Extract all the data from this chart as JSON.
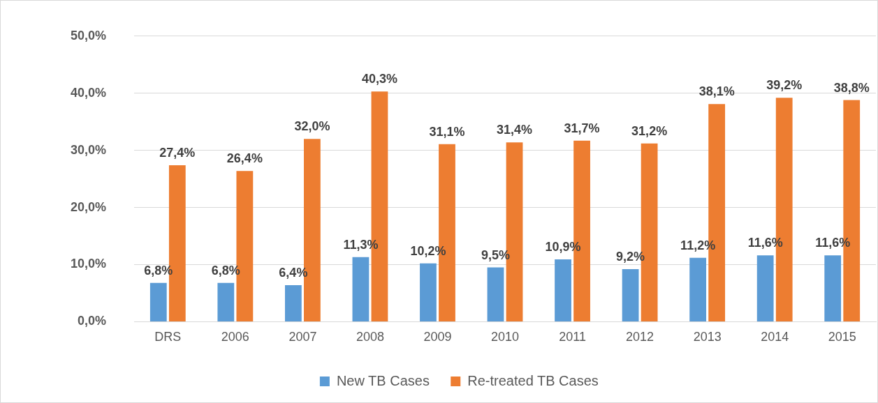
{
  "chart_data": {
    "type": "bar",
    "categories": [
      "DRS",
      "2006",
      "2007",
      "2008",
      "2009",
      "2010",
      "2011",
      "2012",
      "2013",
      "2014",
      "2015"
    ],
    "series": [
      {
        "name": "New TB Cases",
        "color": "#5b9bd5",
        "values": [
          6.8,
          6.8,
          6.4,
          11.3,
          10.2,
          9.5,
          10.9,
          9.2,
          11.2,
          11.6,
          11.6
        ],
        "value_labels": [
          "6,8%",
          "6,8%",
          "6,4%",
          "11,3%",
          "10,2%",
          "9,5%",
          "10,9%",
          "9,2%",
          "11,2%",
          "11,6%",
          "11,6%"
        ]
      },
      {
        "name": "Re-treated TB Cases",
        "color": "#ed7d31",
        "values": [
          27.4,
          26.4,
          32.0,
          40.3,
          31.1,
          31.4,
          31.7,
          31.2,
          38.1,
          39.2,
          38.8
        ],
        "value_labels": [
          "27,4%",
          "26,4%",
          "32,0%",
          "40,3%",
          "31,1%",
          "31,4%",
          "31,7%",
          "31,2%",
          "38,1%",
          "39,2%",
          "38,8%"
        ]
      }
    ],
    "ylim": [
      0,
      50
    ],
    "yticks": [
      {
        "value": 0,
        "label": "0,0%"
      },
      {
        "value": 10,
        "label": "10,0%"
      },
      {
        "value": 20,
        "label": "20,0%"
      },
      {
        "value": 30,
        "label": "30,0%"
      },
      {
        "value": 40,
        "label": "40,0%"
      },
      {
        "value": 50,
        "label": "50,0%"
      }
    ],
    "grid": "y",
    "legend": "bottom"
  }
}
